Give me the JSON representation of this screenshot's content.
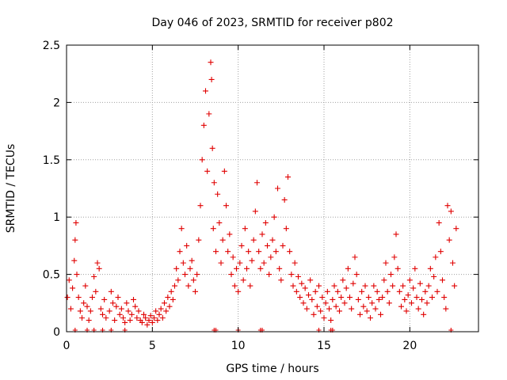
{
  "chart_data": {
    "type": "scatter",
    "title": "Day 046 of 2023, SRMTID for receiver p802",
    "xlabel": "GPS time / hours",
    "ylabel": "SRMTID / TECUs",
    "xlim": [
      0,
      24
    ],
    "ylim": [
      0,
      2.5
    ],
    "xticks": [
      0,
      5,
      10,
      15,
      20
    ],
    "yticks": [
      0,
      0.5,
      1,
      1.5,
      2,
      2.5
    ],
    "xtick_labels": [
      "0",
      "5",
      "10",
      "15",
      "20"
    ],
    "ytick_labels": [
      "0",
      "0.5",
      "1",
      "1.5",
      "2",
      "2.5"
    ],
    "grid": true,
    "marker": "+",
    "color": "#e00000",
    "series": [
      {
        "name": "SRMTID",
        "points": [
          [
            0.05,
            0.3
          ],
          [
            0.15,
            0.45
          ],
          [
            0.25,
            0.2
          ],
          [
            0.35,
            0.38
          ],
          [
            0.45,
            0.62
          ],
          [
            0.5,
            0.8
          ],
          [
            0.55,
            0.95
          ],
          [
            0.6,
            0.5
          ],
          [
            0.7,
            0.3
          ],
          [
            0.8,
            0.18
          ],
          [
            0.9,
            0.12
          ],
          [
            1.0,
            0.25
          ],
          [
            1.1,
            0.4
          ],
          [
            1.2,
            0.22
          ],
          [
            1.3,
            0.1
          ],
          [
            1.4,
            0.18
          ],
          [
            1.5,
            0.3
          ],
          [
            1.6,
            0.48
          ],
          [
            1.7,
            0.35
          ],
          [
            1.8,
            0.6
          ],
          [
            1.9,
            0.55
          ],
          [
            2.0,
            0.2
          ],
          [
            2.1,
            0.15
          ],
          [
            2.2,
            0.28
          ],
          [
            2.3,
            0.12
          ],
          [
            2.5,
            0.18
          ],
          [
            2.6,
            0.35
          ],
          [
            2.7,
            0.25
          ],
          [
            2.8,
            0.1
          ],
          [
            2.9,
            0.22
          ],
          [
            3.0,
            0.3
          ],
          [
            3.1,
            0.15
          ],
          [
            3.2,
            0.2
          ],
          [
            3.3,
            0.12
          ],
          [
            3.4,
            0.08
          ],
          [
            3.5,
            0.25
          ],
          [
            3.6,
            0.18
          ],
          [
            3.7,
            0.1
          ],
          [
            3.8,
            0.15
          ],
          [
            3.9,
            0.28
          ],
          [
            4.0,
            0.22
          ],
          [
            4.1,
            0.12
          ],
          [
            4.2,
            0.18
          ],
          [
            4.3,
            0.1
          ],
          [
            4.4,
            0.08
          ],
          [
            4.5,
            0.15
          ],
          [
            4.6,
            0.12
          ],
          [
            4.7,
            0.06
          ],
          [
            4.8,
            0.1
          ],
          [
            4.9,
            0.14
          ],
          [
            5.0,
            0.08
          ],
          [
            5.1,
            0.12
          ],
          [
            5.2,
            0.18
          ],
          [
            5.3,
            0.1
          ],
          [
            5.4,
            0.15
          ],
          [
            5.5,
            0.2
          ],
          [
            5.6,
            0.12
          ],
          [
            5.7,
            0.25
          ],
          [
            5.8,
            0.18
          ],
          [
            5.9,
            0.3
          ],
          [
            6.0,
            0.22
          ],
          [
            6.1,
            0.35
          ],
          [
            6.2,
            0.28
          ],
          [
            6.3,
            0.4
          ],
          [
            6.4,
            0.55
          ],
          [
            6.5,
            0.45
          ],
          [
            6.6,
            0.7
          ],
          [
            6.7,
            0.9
          ],
          [
            6.8,
            0.6
          ],
          [
            6.9,
            0.5
          ],
          [
            7.0,
            0.75
          ],
          [
            7.1,
            0.4
          ],
          [
            7.2,
            0.55
          ],
          [
            7.3,
            0.62
          ],
          [
            7.4,
            0.45
          ],
          [
            7.5,
            0.35
          ],
          [
            7.6,
            0.5
          ],
          [
            7.7,
            0.8
          ],
          [
            7.8,
            1.1
          ],
          [
            7.9,
            1.5
          ],
          [
            8.0,
            1.8
          ],
          [
            8.1,
            2.1
          ],
          [
            8.2,
            1.4
          ],
          [
            8.3,
            1.9
          ],
          [
            8.4,
            2.35
          ],
          [
            8.45,
            2.2
          ],
          [
            8.5,
            1.6
          ],
          [
            8.55,
            0.9
          ],
          [
            8.6,
            1.3
          ],
          [
            8.7,
            0.7
          ],
          [
            8.8,
            1.2
          ],
          [
            8.9,
            0.95
          ],
          [
            9.0,
            0.6
          ],
          [
            9.1,
            0.8
          ],
          [
            9.2,
            1.4
          ],
          [
            9.3,
            1.1
          ],
          [
            9.4,
            0.7
          ],
          [
            9.5,
            0.85
          ],
          [
            9.6,
            0.5
          ],
          [
            9.7,
            0.65
          ],
          [
            9.8,
            0.4
          ],
          [
            9.9,
            0.55
          ],
          [
            10.0,
            0.35
          ],
          [
            10.1,
            0.6
          ],
          [
            10.2,
            0.75
          ],
          [
            10.3,
            0.45
          ],
          [
            10.4,
            0.9
          ],
          [
            10.5,
            0.55
          ],
          [
            10.6,
            0.7
          ],
          [
            10.7,
            0.4
          ],
          [
            10.8,
            0.62
          ],
          [
            10.9,
            0.8
          ],
          [
            11.0,
            1.05
          ],
          [
            11.1,
            1.3
          ],
          [
            11.2,
            0.7
          ],
          [
            11.3,
            0.55
          ],
          [
            11.4,
            0.85
          ],
          [
            11.5,
            0.6
          ],
          [
            11.6,
            0.95
          ],
          [
            11.7,
            0.75
          ],
          [
            11.8,
            0.5
          ],
          [
            11.9,
            0.65
          ],
          [
            12.0,
            0.8
          ],
          [
            12.1,
            1.0
          ],
          [
            12.2,
            0.7
          ],
          [
            12.3,
            1.25
          ],
          [
            12.4,
            0.55
          ],
          [
            12.5,
            0.45
          ],
          [
            12.6,
            0.75
          ],
          [
            12.7,
            1.15
          ],
          [
            12.8,
            0.9
          ],
          [
            12.9,
            1.35
          ],
          [
            13.0,
            0.7
          ],
          [
            13.1,
            0.5
          ],
          [
            13.2,
            0.4
          ],
          [
            13.3,
            0.6
          ],
          [
            13.4,
            0.35
          ],
          [
            13.5,
            0.48
          ],
          [
            13.6,
            0.3
          ],
          [
            13.7,
            0.42
          ],
          [
            13.8,
            0.25
          ],
          [
            13.9,
            0.38
          ],
          [
            14.0,
            0.2
          ],
          [
            14.1,
            0.32
          ],
          [
            14.2,
            0.45
          ],
          [
            14.3,
            0.28
          ],
          [
            14.4,
            0.15
          ],
          [
            14.5,
            0.35
          ],
          [
            14.6,
            0.22
          ],
          [
            14.7,
            0.4
          ],
          [
            14.8,
            0.18
          ],
          [
            14.9,
            0.3
          ],
          [
            15.0,
            0.12
          ],
          [
            15.1,
            0.25
          ],
          [
            15.2,
            0.35
          ],
          [
            15.3,
            0.2
          ],
          [
            15.4,
            0.1
          ],
          [
            15.5,
            0.28
          ],
          [
            15.6,
            0.4
          ],
          [
            15.7,
            0.22
          ],
          [
            15.8,
            0.35
          ],
          [
            15.9,
            0.18
          ],
          [
            16.0,
            0.3
          ],
          [
            16.1,
            0.45
          ],
          [
            16.2,
            0.25
          ],
          [
            16.3,
            0.38
          ],
          [
            16.4,
            0.55
          ],
          [
            16.5,
            0.3
          ],
          [
            16.6,
            0.2
          ],
          [
            16.7,
            0.42
          ],
          [
            16.8,
            0.65
          ],
          [
            16.9,
            0.5
          ],
          [
            17.0,
            0.28
          ],
          [
            17.1,
            0.15
          ],
          [
            17.2,
            0.35
          ],
          [
            17.3,
            0.22
          ],
          [
            17.4,
            0.4
          ],
          [
            17.5,
            0.18
          ],
          [
            17.6,
            0.3
          ],
          [
            17.7,
            0.12
          ],
          [
            17.8,
            0.25
          ],
          [
            17.9,
            0.4
          ],
          [
            18.0,
            0.2
          ],
          [
            18.1,
            0.35
          ],
          [
            18.2,
            0.28
          ],
          [
            18.3,
            0.15
          ],
          [
            18.4,
            0.3
          ],
          [
            18.5,
            0.45
          ],
          [
            18.6,
            0.6
          ],
          [
            18.7,
            0.35
          ],
          [
            18.8,
            0.25
          ],
          [
            18.9,
            0.5
          ],
          [
            19.0,
            0.4
          ],
          [
            19.1,
            0.65
          ],
          [
            19.2,
            0.85
          ],
          [
            19.3,
            0.55
          ],
          [
            19.4,
            0.35
          ],
          [
            19.5,
            0.22
          ],
          [
            19.6,
            0.4
          ],
          [
            19.7,
            0.28
          ],
          [
            19.8,
            0.18
          ],
          [
            19.9,
            0.32
          ],
          [
            20.0,
            0.45
          ],
          [
            20.1,
            0.25
          ],
          [
            20.2,
            0.38
          ],
          [
            20.3,
            0.55
          ],
          [
            20.4,
            0.3
          ],
          [
            20.5,
            0.2
          ],
          [
            20.6,
            0.42
          ],
          [
            20.7,
            0.28
          ],
          [
            20.8,
            0.15
          ],
          [
            20.9,
            0.35
          ],
          [
            21.0,
            0.25
          ],
          [
            21.1,
            0.4
          ],
          [
            21.2,
            0.55
          ],
          [
            21.3,
            0.3
          ],
          [
            21.4,
            0.48
          ],
          [
            21.5,
            0.65
          ],
          [
            21.6,
            0.35
          ],
          [
            21.7,
            0.95
          ],
          [
            21.8,
            0.7
          ],
          [
            21.9,
            0.45
          ],
          [
            22.0,
            0.3
          ],
          [
            22.1,
            0.2
          ],
          [
            22.2,
            1.1
          ],
          [
            22.3,
            0.8
          ],
          [
            22.4,
            1.05
          ],
          [
            22.5,
            0.6
          ],
          [
            22.6,
            0.4
          ],
          [
            22.7,
            0.9
          ]
        ]
      }
    ],
    "gap_markers_x": [
      0.5,
      1.2,
      1.6,
      2.1,
      2.6,
      3.4,
      8.6,
      8.7,
      10.0,
      11.3,
      11.4,
      14.7,
      15.4,
      15.5,
      22.4
    ]
  }
}
